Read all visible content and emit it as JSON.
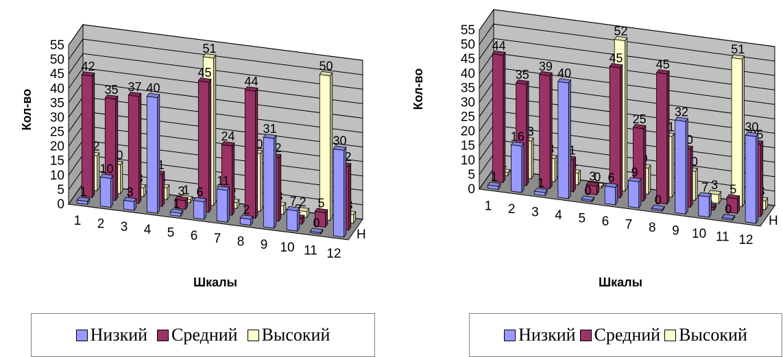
{
  "colors": {
    "low": "#9999ff",
    "medium": "#993366",
    "high": "#ffffcc",
    "wall": "#c0c0c0",
    "grid": "#000000"
  },
  "legend_labels": [
    "Низкий",
    "Средний",
    "Высокий"
  ],
  "chart_data": [
    {
      "type": "bar",
      "title": "",
      "xlabel": "Шкалы",
      "ylabel": "Кол-во",
      "depth_label": "H",
      "ylim": [
        0,
        55
      ],
      "yticks": [
        0,
        5,
        10,
        15,
        20,
        25,
        30,
        35,
        40,
        45,
        50,
        55
      ],
      "categories": [
        "1",
        "2",
        "3",
        "4",
        "5",
        "6",
        "7",
        "8",
        "9",
        "10",
        "11",
        "12"
      ],
      "series": [
        {
          "name": "Низкий",
          "values": [
            1,
            10,
            3,
            40,
            1,
            6,
            11,
            2,
            31,
            7,
            0,
            30
          ]
        },
        {
          "name": "Средний",
          "values": [
            42,
            35,
            37,
            11,
            3,
            45,
            24,
            44,
            22,
            2,
            5,
            22
          ]
        },
        {
          "name": "Высокий",
          "values": [
            12,
            10,
            3,
            4,
            1,
            51,
            2,
            20,
            3,
            2,
            50,
            3
          ]
        }
      ],
      "labels": [
        [
          "1",
          "12",
          "10",
          "",
          "",
          "",
          "",
          "",
          "",
          "",
          "",
          "",
          ""
        ],
        [
          "1",
          "10",
          "35",
          "",
          "37",
          "40",
          "4",
          "3",
          "",
          "",
          "",
          "",
          ""
        ]
      ]
    },
    {
      "type": "bar",
      "title": "",
      "xlabel": "Шкалы",
      "ylabel": "Кол-во",
      "depth_label": "H",
      "ylim": [
        0,
        55
      ],
      "yticks": [
        0,
        5,
        10,
        15,
        20,
        25,
        30,
        35,
        40,
        45,
        50,
        55
      ],
      "categories": [
        "1",
        "2",
        "3",
        "4",
        "5",
        "6",
        "7",
        "8",
        "9",
        "10",
        "11",
        "12"
      ],
      "series": [
        {
          "name": "Низкий",
          "values": [
            1,
            16,
            1,
            40,
            0,
            6,
            9,
            0,
            32,
            7,
            0,
            30
          ]
        },
        {
          "name": "Средний",
          "values": [
            44,
            35,
            39,
            11,
            3,
            45,
            25,
            45,
            20,
            1,
            5,
            25
          ]
        },
        {
          "name": "Высокий",
          "values": [
            1,
            13,
            8,
            4,
            0,
            52,
            9,
            21,
            10,
            3,
            51,
            3
          ]
        }
      ]
    }
  ]
}
